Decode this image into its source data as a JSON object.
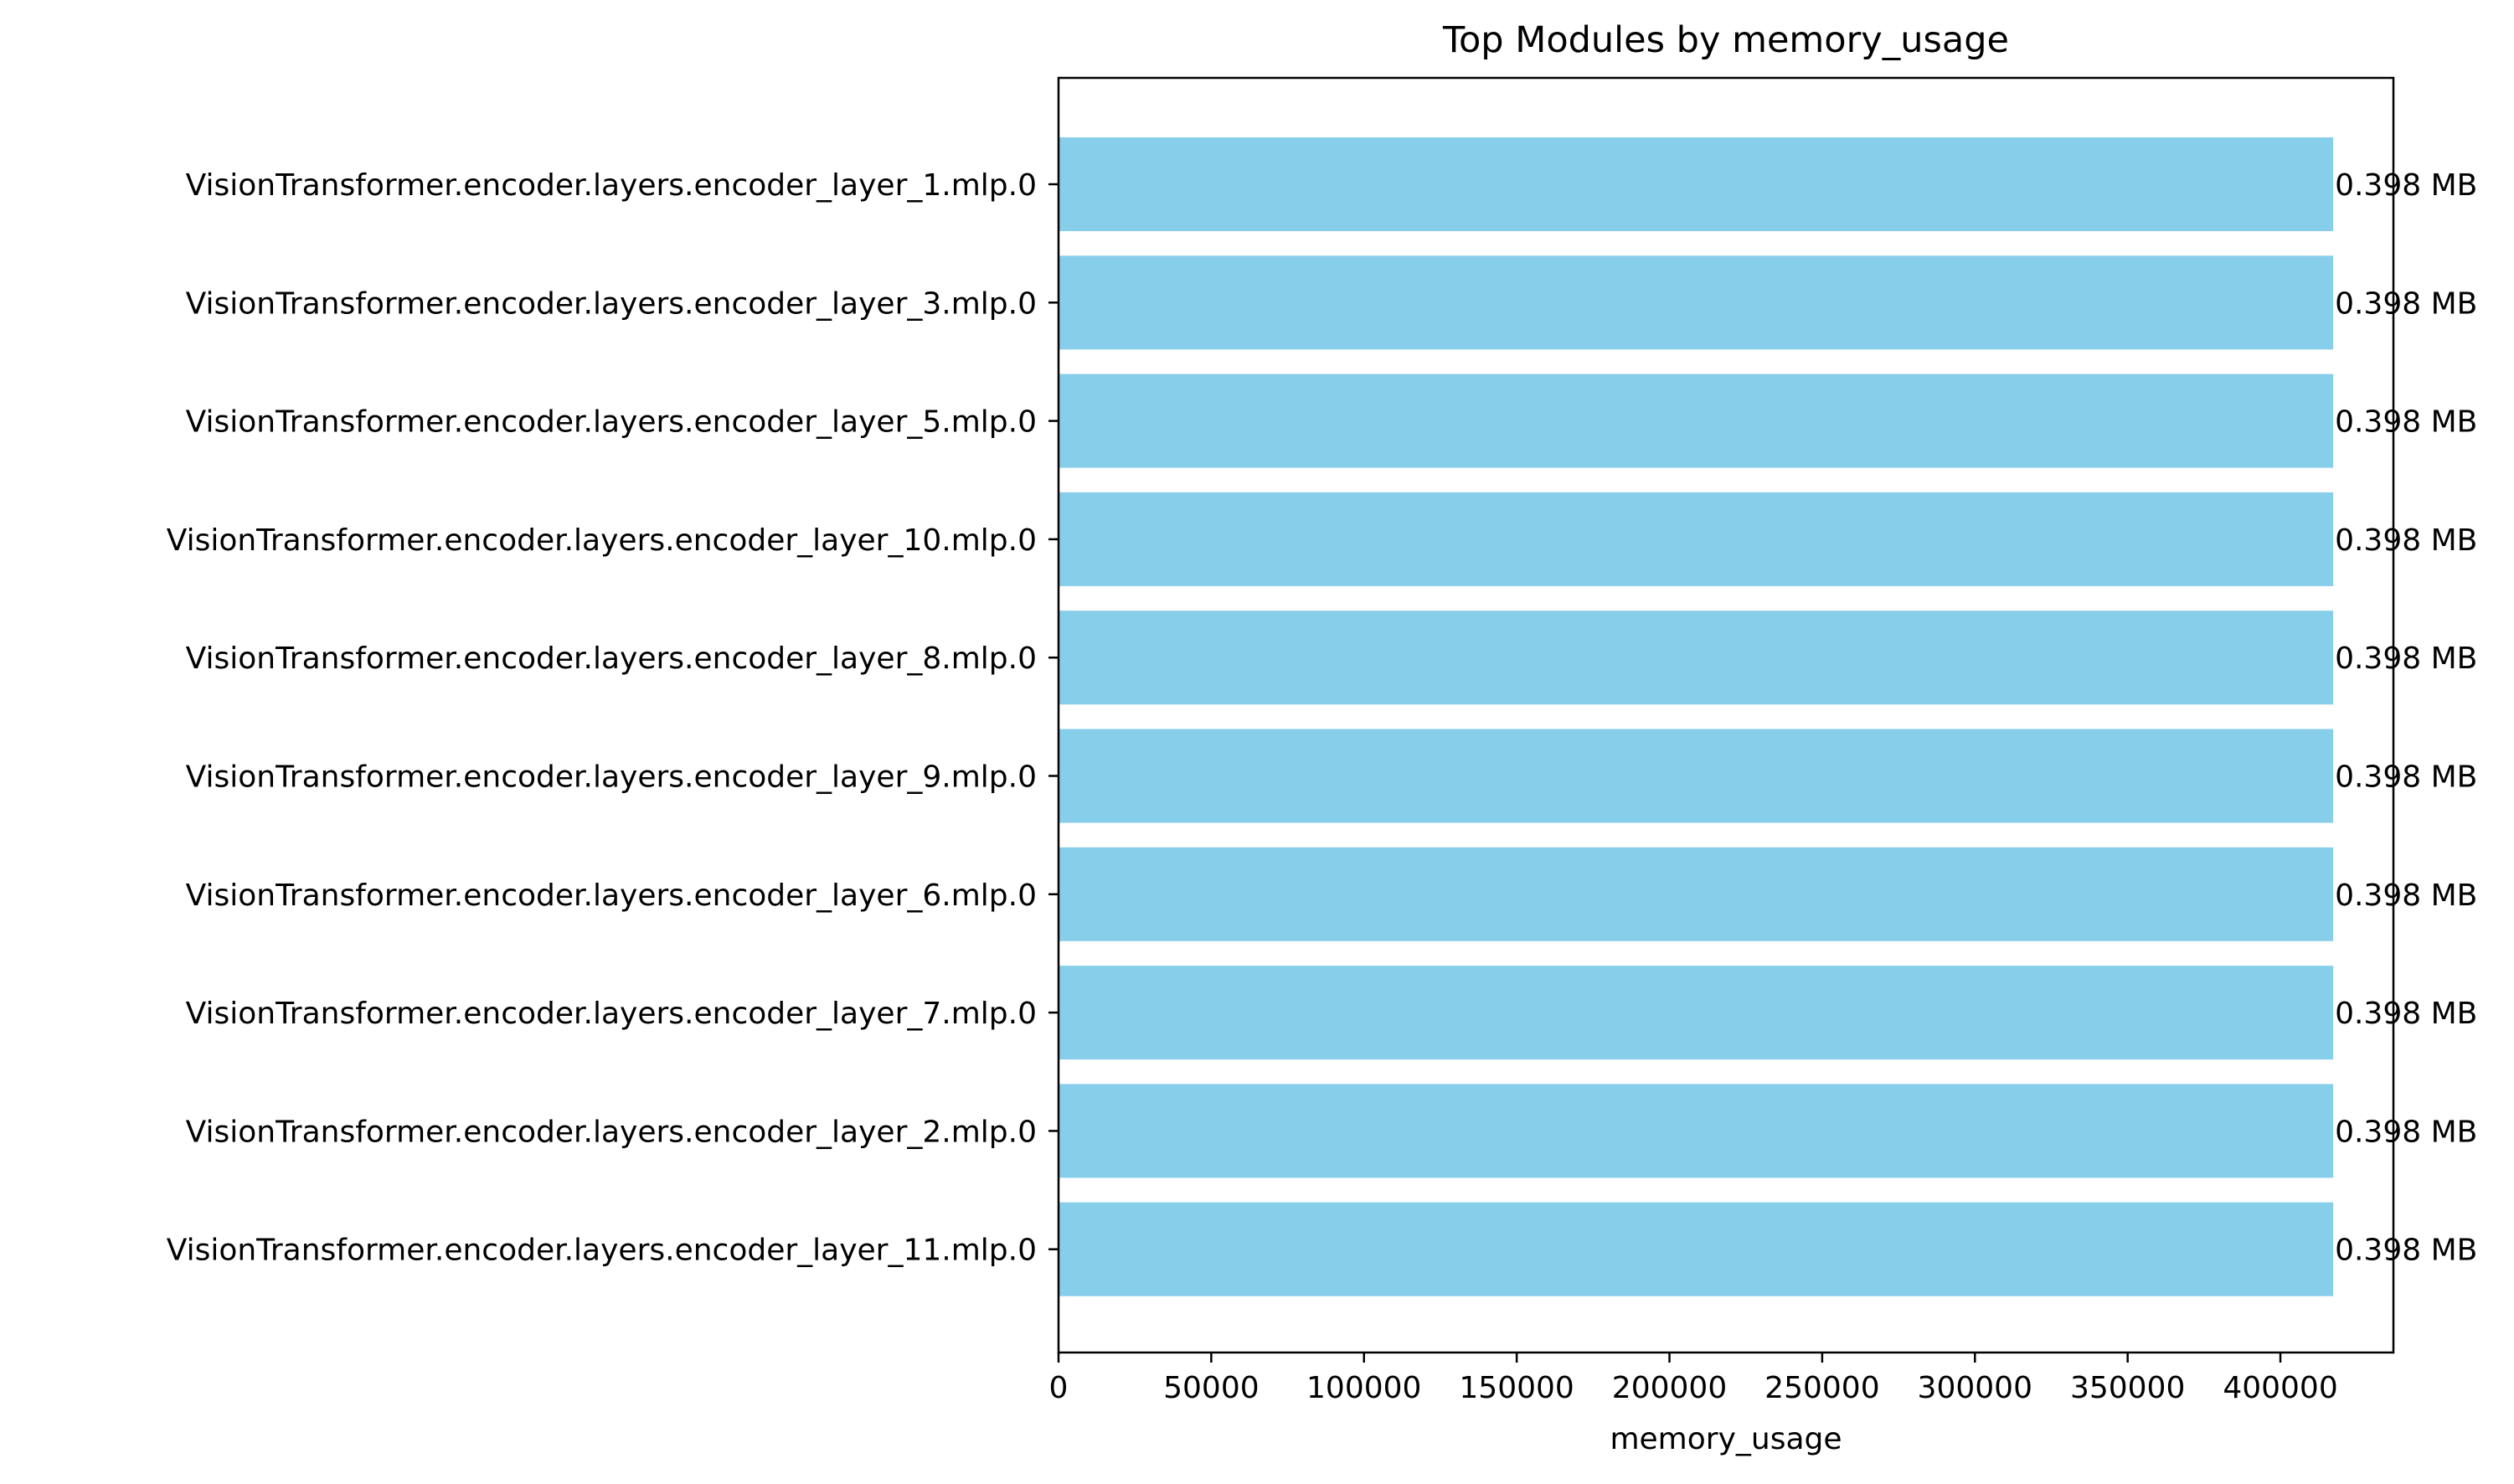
{
  "colors": {
    "bar": "#87ceeb",
    "axis": "#000000",
    "text": "#000000",
    "background": "#ffffff"
  },
  "chart_data": {
    "type": "bar",
    "orientation": "horizontal",
    "title": "Top Modules by memory_usage",
    "xlabel": "memory_usage",
    "ylabel": "",
    "xlim": [
      0,
      437000
    ],
    "xticks": [
      0,
      50000,
      100000,
      150000,
      200000,
      250000,
      300000,
      350000,
      400000
    ],
    "xtick_labels": [
      "0",
      "50000",
      "100000",
      "150000",
      "200000",
      "250000",
      "300000",
      "350000",
      "400000"
    ],
    "grid": false,
    "legend": "none",
    "categories": [
      "VisionTransformer.encoder.layers.encoder_layer_1.mlp.0",
      "VisionTransformer.encoder.layers.encoder_layer_3.mlp.0",
      "VisionTransformer.encoder.layers.encoder_layer_5.mlp.0",
      "VisionTransformer.encoder.layers.encoder_layer_10.mlp.0",
      "VisionTransformer.encoder.layers.encoder_layer_8.mlp.0",
      "VisionTransformer.encoder.layers.encoder_layer_9.mlp.0",
      "VisionTransformer.encoder.layers.encoder_layer_6.mlp.0",
      "VisionTransformer.encoder.layers.encoder_layer_7.mlp.0",
      "VisionTransformer.encoder.layers.encoder_layer_2.mlp.0",
      "VisionTransformer.encoder.layers.encoder_layer_11.mlp.0"
    ],
    "values": [
      417280,
      417280,
      417280,
      417280,
      417280,
      417280,
      417280,
      417280,
      417280,
      417280
    ],
    "data_labels": [
      "0.398 MB",
      "0.398 MB",
      "0.398 MB",
      "0.398 MB",
      "0.398 MB",
      "0.398 MB",
      "0.398 MB",
      "0.398 MB",
      "0.398 MB",
      "0.398 MB"
    ]
  }
}
